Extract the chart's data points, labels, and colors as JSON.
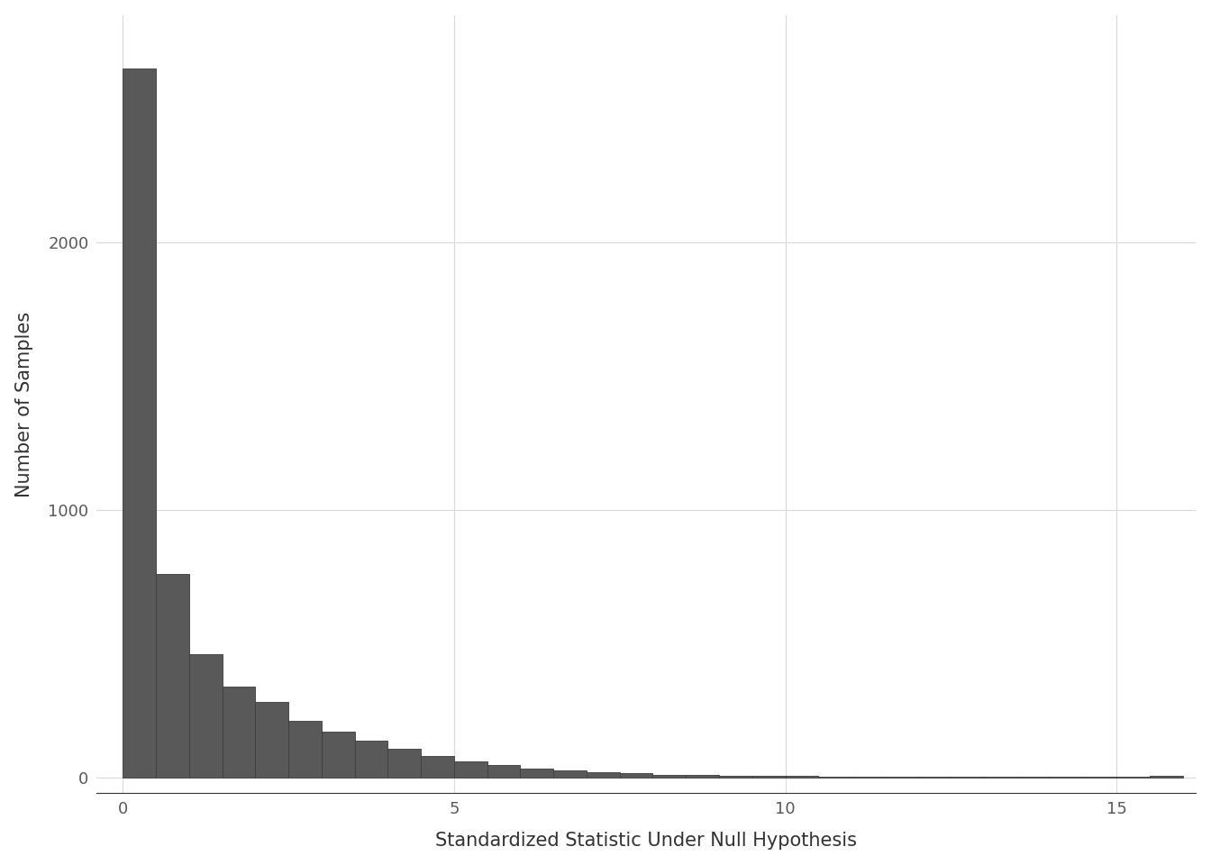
{
  "title": "",
  "xlabel": "Standardized Statistic Under Null Hypothesis",
  "ylabel": "Number of Samples",
  "bar_color": "#595959",
  "bar_edgecolor": "#3d3d3d",
  "background_color": "#ffffff",
  "panel_background": "#ffffff",
  "grid_color": "#d9d9d9",
  "xlim": [
    -0.4,
    16.2
  ],
  "ylim": [
    -60,
    2850
  ],
  "xticks": [
    0,
    5,
    10,
    15
  ],
  "yticks": [
    0,
    1000,
    2000
  ],
  "bin_width": 0.5,
  "bin_starts": [
    0.0,
    0.5,
    1.0,
    1.5,
    2.0,
    2.5,
    3.0,
    3.5,
    4.0,
    4.5,
    5.0,
    5.5,
    6.0,
    6.5,
    7.0,
    7.5,
    8.0,
    8.5,
    9.0,
    9.5,
    10.0,
    10.5,
    11.0,
    11.5,
    12.0,
    12.5,
    13.0,
    13.5,
    14.0,
    14.5,
    15.0,
    15.5
  ],
  "bin_counts": [
    2650,
    760,
    460,
    340,
    280,
    210,
    170,
    135,
    105,
    80,
    60,
    45,
    32,
    24,
    18,
    14,
    10,
    8,
    6,
    5,
    4,
    3,
    3,
    2,
    2,
    2,
    1,
    1,
    1,
    1,
    1,
    4
  ],
  "axis_label_fontsize": 15,
  "tick_fontsize": 13,
  "axis_label_color": "#333333",
  "tick_color": "#595959"
}
